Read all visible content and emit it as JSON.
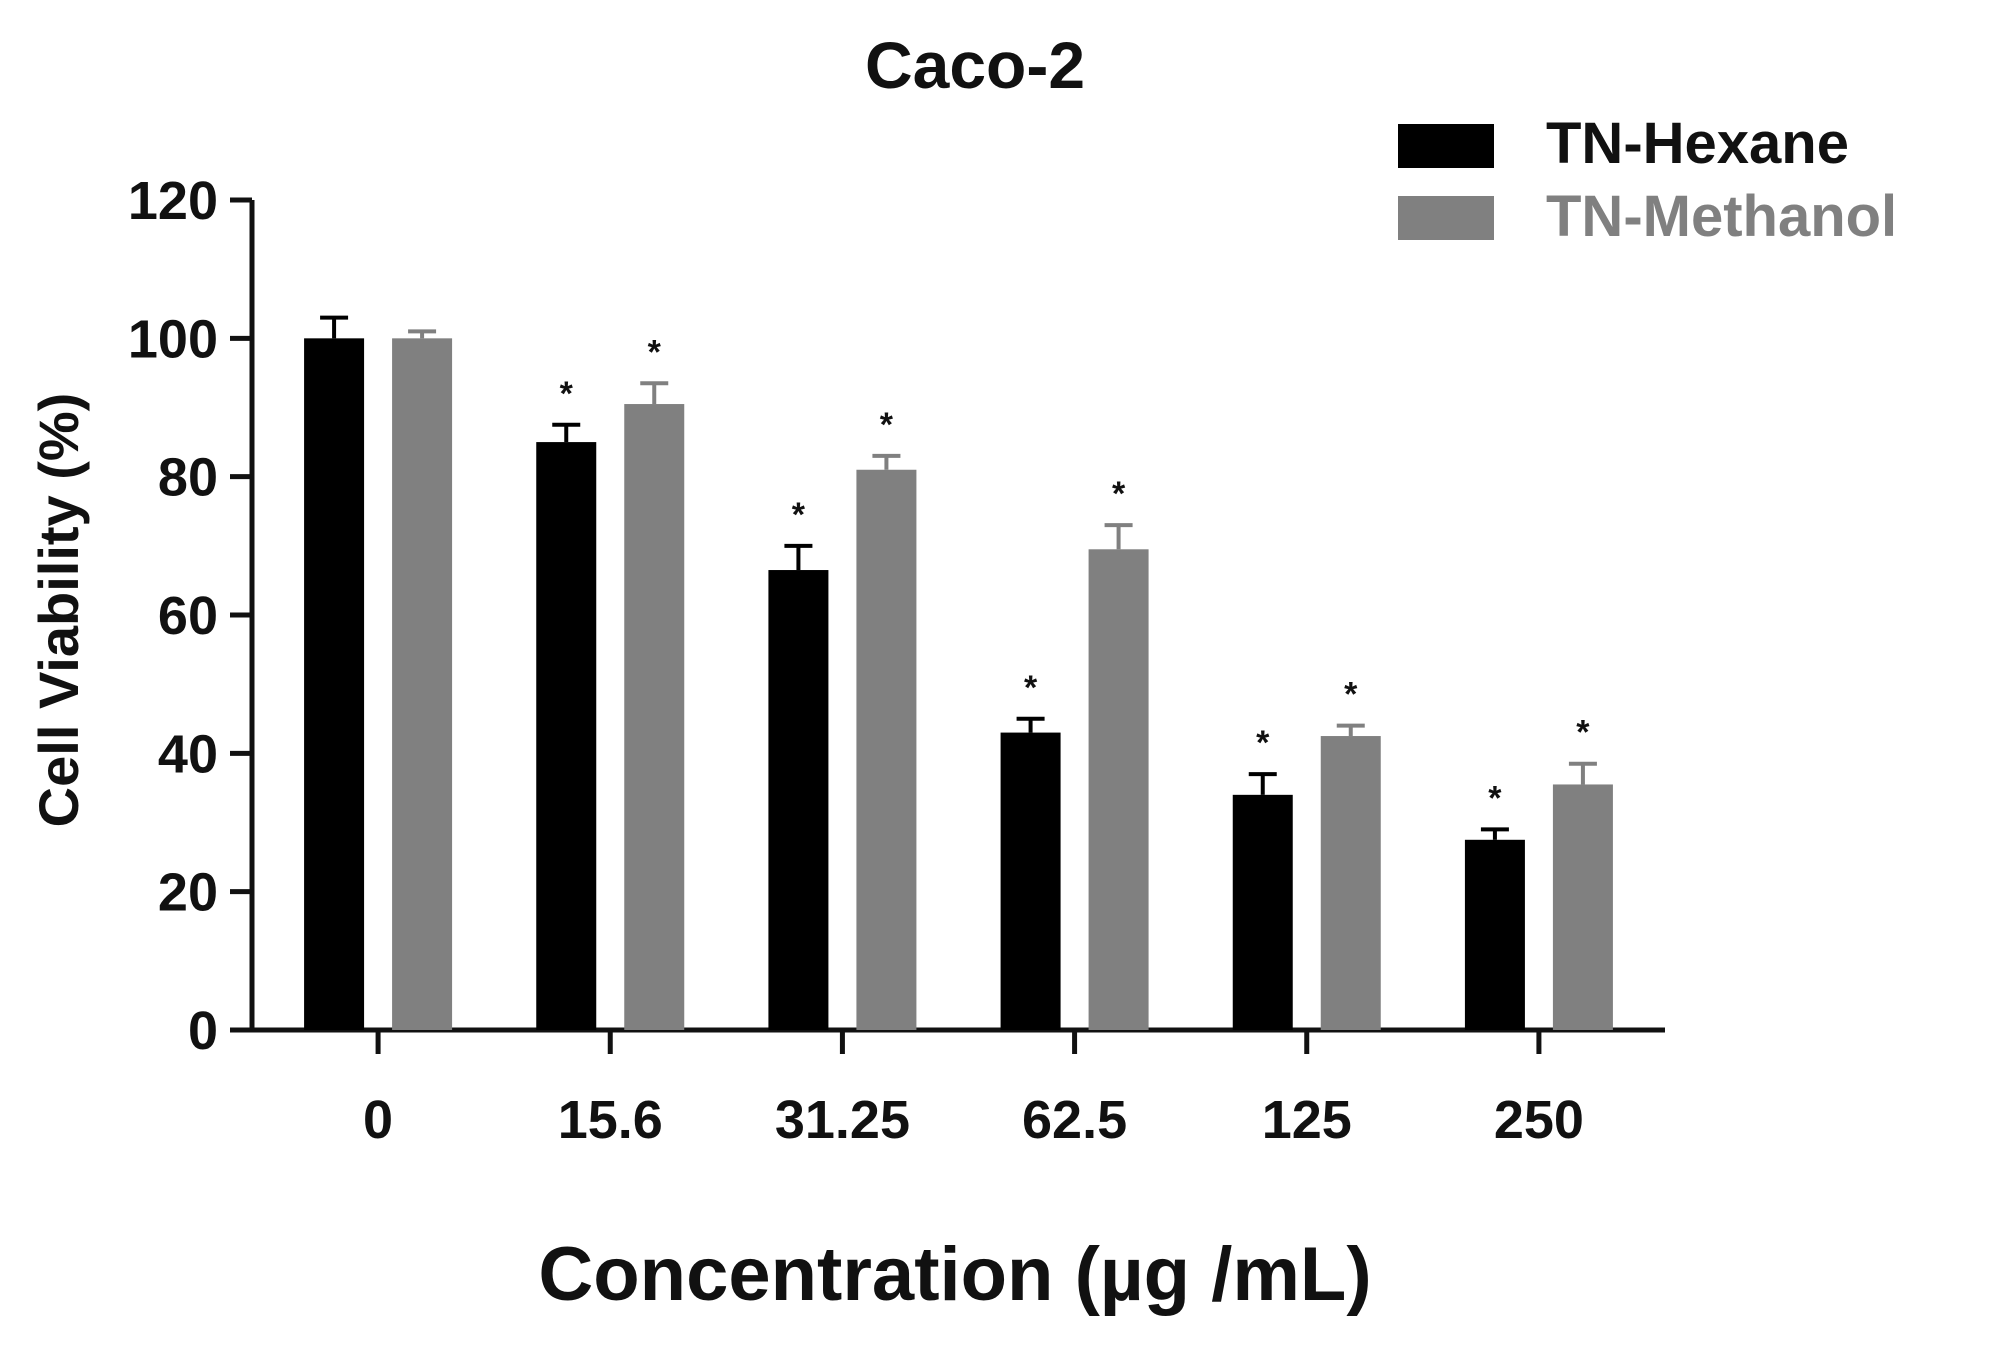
{
  "chart_data": {
    "type": "bar",
    "title": "Caco-2",
    "xlabel": "Concentration (µg /mL)",
    "ylabel": "Cell Viability (%)",
    "categories": [
      "0",
      "15.6",
      "31.25",
      "62.5",
      "125",
      "250"
    ],
    "ylim": [
      0,
      120
    ],
    "yticks": [
      0,
      20,
      40,
      60,
      80,
      100,
      120
    ],
    "grid": false,
    "legend_position": "top-right",
    "series": [
      {
        "name": "TN-Hexane",
        "color": "#000000",
        "values": [
          100,
          85,
          66.5,
          43,
          34,
          27.5
        ],
        "errors": [
          3,
          2.5,
          3.5,
          2,
          3,
          1.5
        ],
        "significance": [
          "",
          "*",
          "*",
          "*",
          "*",
          "*"
        ]
      },
      {
        "name": "TN-Methanol",
        "color": "#808080",
        "values": [
          100,
          90.5,
          81,
          69.5,
          42.5,
          35.5
        ],
        "errors": [
          1,
          3,
          2,
          3.5,
          1.5,
          3
        ],
        "significance": [
          "",
          "*",
          "*",
          "*",
          "*",
          "*"
        ]
      }
    ]
  }
}
